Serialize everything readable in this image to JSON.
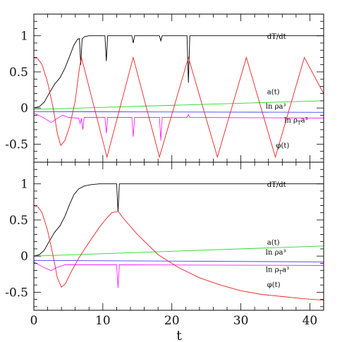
{
  "chart_data": {
    "type": "line",
    "xlabel": "t",
    "xlim": [
      0,
      42
    ],
    "x_ticks": [
      0,
      10,
      20,
      30,
      40
    ],
    "panels": [
      {
        "id": "top",
        "ylim": [
          -0.75,
          1.3
        ],
        "y_ticks": [
          -0.5,
          0,
          0.5,
          1
        ],
        "y_tick_labels": [
          "-0.5",
          "0",
          "0.5",
          "1"
        ],
        "curve_labels": [
          {
            "text": "dT/dt",
            "x": 33.8,
            "y": 0.96
          },
          {
            "text": "a(t)",
            "x": 33.8,
            "y": 0.19
          },
          {
            "text": "ln ρa³",
            "x": 33.6,
            "y": -0.01
          },
          {
            "text": "ln ρ",
            "sub": "T",
            "sup": "a³",
            "x": 36.3,
            "y": -0.2
          },
          {
            "text": "φ(t)",
            "x": 35.1,
            "y": -0.55
          }
        ],
        "series": [
          {
            "id": "dTdt",
            "color": "#000000",
            "points": [
              [
                0,
                0
              ],
              [
                0.8,
                0.02
              ],
              [
                1.5,
                0.08
              ],
              [
                2.2,
                0.2
              ],
              [
                3,
                0.33
              ],
              [
                3.8,
                0.42
              ],
              [
                4.5,
                0.55
              ],
              [
                5.2,
                0.72
              ],
              [
                5.8,
                0.87
              ],
              [
                6.3,
                0.95
              ],
              [
                6.6,
                0.96
              ],
              [
                6.8,
                0.6
              ],
              [
                7.0,
                0.96
              ],
              [
                7.4,
                0.99
              ],
              [
                8,
                1
              ],
              [
                10.3,
                1
              ],
              [
                10.5,
                0.65
              ],
              [
                10.7,
                1
              ],
              [
                14.2,
                1
              ],
              [
                14.4,
                0.9
              ],
              [
                14.6,
                1
              ],
              [
                18.2,
                1
              ],
              [
                18.4,
                0.93
              ],
              [
                18.6,
                1
              ],
              [
                22.2,
                1
              ],
              [
                22.4,
                0.35
              ],
              [
                22.6,
                1
              ],
              [
                42,
                1
              ]
            ]
          },
          {
            "id": "a",
            "color": "#22dd22",
            "points": [
              [
                0,
                -0.02
              ],
              [
                42,
                0.1
              ]
            ]
          },
          {
            "id": "lnrho",
            "color": "#4444ff",
            "points": [
              [
                0,
                -0.05
              ],
              [
                42,
                -0.06
              ]
            ]
          },
          {
            "id": "lnrhoT",
            "color": "#ff22ff",
            "points": [
              [
                0,
                -0.07
              ],
              [
                1.5,
                -0.14
              ],
              [
                2.5,
                -0.2
              ],
              [
                3.3,
                -0.15
              ],
              [
                4.2,
                -0.1
              ],
              [
                5.0,
                -0.13
              ],
              [
                6.5,
                -0.14
              ],
              [
                6.7,
                -0.22
              ],
              [
                6.9,
                -0.14
              ],
              [
                7.1,
                -0.3
              ],
              [
                7.3,
                -0.13
              ],
              [
                10.3,
                -0.13
              ],
              [
                10.5,
                -0.35
              ],
              [
                10.7,
                -0.13
              ],
              [
                14.2,
                -0.13
              ],
              [
                14.4,
                -0.4
              ],
              [
                14.6,
                -0.13
              ],
              [
                18.2,
                -0.13
              ],
              [
                18.4,
                -0.45
              ],
              [
                18.6,
                -0.13
              ],
              [
                22.2,
                -0.13
              ],
              [
                22.4,
                -0.09
              ],
              [
                22.6,
                -0.13
              ],
              [
                42,
                -0.14
              ]
            ]
          },
          {
            "id": "phi",
            "color": "#ee2222",
            "points": [
              [
                0,
                0.7
              ],
              [
                0.6,
                0.68
              ],
              [
                1.2,
                0.6
              ],
              [
                2,
                0.35
              ],
              [
                2.8,
                0.0
              ],
              [
                3.4,
                -0.35
              ],
              [
                3.9,
                -0.52
              ],
              [
                4.5,
                -0.45
              ],
              [
                5.2,
                -0.25
              ],
              [
                6.0,
                0.1
              ],
              [
                6.6,
                0.55
              ],
              [
                6.9,
                0.7
              ],
              [
                10.6,
                -0.68
              ],
              [
                14.4,
                0.7
              ],
              [
                18.2,
                -0.68
              ],
              [
                22.4,
                0.7
              ],
              [
                26.6,
                -0.68
              ],
              [
                30.8,
                0.7
              ],
              [
                35.0,
                -0.68
              ],
              [
                39.2,
                0.7
              ],
              [
                42,
                0.2
              ]
            ]
          }
        ]
      },
      {
        "id": "bottom",
        "ylim": [
          -0.75,
          1.3
        ],
        "y_ticks": [
          -0.5,
          0,
          0.5,
          1
        ],
        "y_tick_labels": [
          "-0.5",
          "0",
          "0.5",
          "1"
        ],
        "curve_labels": [
          {
            "text": "dT/dt",
            "x": 33.8,
            "y": 0.96
          },
          {
            "text": "a(t)",
            "x": 33.8,
            "y": 0.16
          },
          {
            "text": "ln ρa³",
            "x": 33.6,
            "y": 0.02
          },
          {
            "text": "ln ρ",
            "sub": "T",
            "sup": "a³",
            "x": 33.6,
            "y": -0.22
          },
          {
            "text": "φ(t)",
            "x": 33.8,
            "y": -0.43
          }
        ],
        "series": [
          {
            "id": "dTdt",
            "color": "#000000",
            "points": [
              [
                0,
                0
              ],
              [
                0.8,
                0.02
              ],
              [
                1.5,
                0.08
              ],
              [
                2.2,
                0.2
              ],
              [
                3,
                0.33
              ],
              [
                3.8,
                0.42
              ],
              [
                4.5,
                0.55
              ],
              [
                5.2,
                0.72
              ],
              [
                5.8,
                0.85
              ],
              [
                6.5,
                0.93
              ],
              [
                7.3,
                0.97
              ],
              [
                8.3,
                0.99
              ],
              [
                9.5,
                1
              ],
              [
                12.0,
                1
              ],
              [
                12.2,
                0.62
              ],
              [
                12.4,
                1
              ],
              [
                42,
                1
              ]
            ]
          },
          {
            "id": "a",
            "color": "#22dd22",
            "points": [
              [
                0,
                0
              ],
              [
                42,
                0.14
              ]
            ]
          },
          {
            "id": "lnrho",
            "color": "#4444ff",
            "points": [
              [
                0,
                -0.06
              ],
              [
                42,
                -0.08
              ]
            ]
          },
          {
            "id": "lnrhoT",
            "color": "#ff22ff",
            "points": [
              [
                0,
                -0.08
              ],
              [
                1.5,
                -0.16
              ],
              [
                2.5,
                -0.2
              ],
              [
                3.3,
                -0.16
              ],
              [
                4.5,
                -0.12
              ],
              [
                6,
                -0.12
              ],
              [
                12.0,
                -0.12
              ],
              [
                12.2,
                -0.44
              ],
              [
                12.4,
                -0.12
              ],
              [
                42,
                -0.13
              ]
            ]
          },
          {
            "id": "phi",
            "color": "#ee2222",
            "points": [
              [
                0,
                0.7
              ],
              [
                0.6,
                0.68
              ],
              [
                1.2,
                0.6
              ],
              [
                2,
                0.35
              ],
              [
                2.8,
                0.0
              ],
              [
                3.4,
                -0.3
              ],
              [
                4.0,
                -0.43
              ],
              [
                4.6,
                -0.38
              ],
              [
                5.4,
                -0.22
              ],
              [
                6.5,
                -0.03
              ],
              [
                7.5,
                0.12
              ],
              [
                8.5,
                0.26
              ],
              [
                9.5,
                0.4
              ],
              [
                10.5,
                0.52
              ],
              [
                11.3,
                0.6
              ],
              [
                12.2,
                0.62
              ],
              [
                13,
                0.52
              ],
              [
                15,
                0.3
              ],
              [
                18,
                0.02
              ],
              [
                21,
                -0.16
              ],
              [
                24,
                -0.3
              ],
              [
                27,
                -0.4
              ],
              [
                30,
                -0.48
              ],
              [
                33,
                -0.53
              ],
              [
                36,
                -0.56
              ],
              [
                39,
                -0.59
              ],
              [
                42,
                -0.61
              ]
            ]
          }
        ]
      }
    ]
  }
}
